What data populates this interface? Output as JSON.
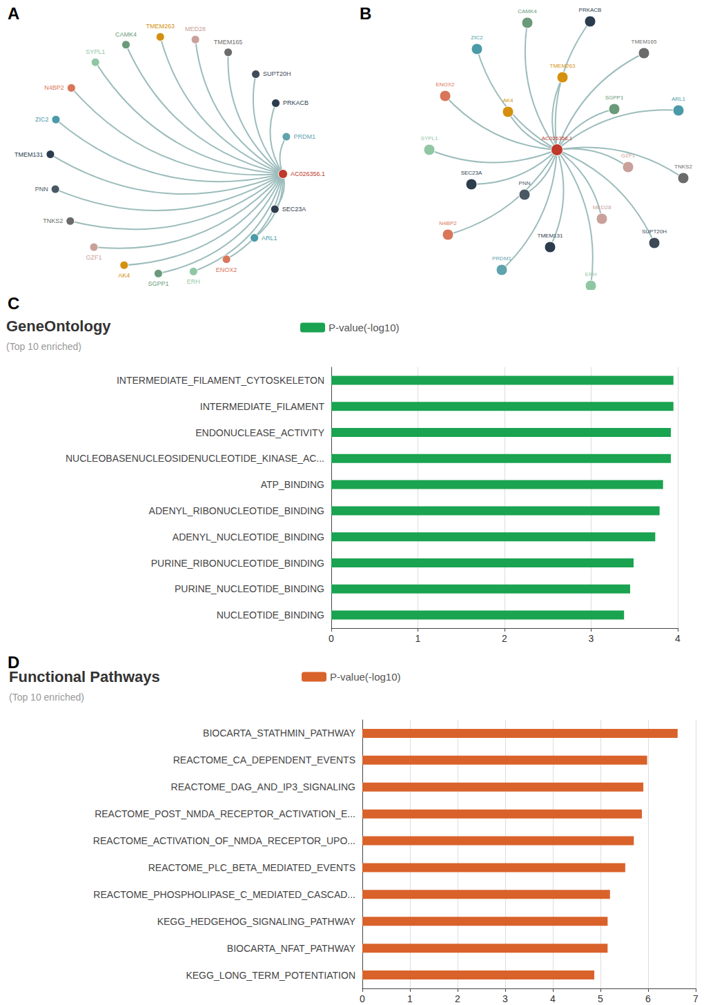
{
  "chart_data": [
    {
      "panel": "A",
      "type": "graph",
      "nodes": [
        {
          "name": "AC026356.1",
          "color": "#c0392b"
        },
        {
          "name": "SEC23A",
          "color": "#2e3d4d"
        },
        {
          "name": "ARL1",
          "color": "#4b9aa8"
        },
        {
          "name": "ENOX2",
          "color": "#d9765a"
        },
        {
          "name": "ERH",
          "color": "#8fc7a3"
        },
        {
          "name": "SGPP1",
          "color": "#6a9a7a"
        },
        {
          "name": "AK4",
          "color": "#d4900e"
        },
        {
          "name": "GZF1",
          "color": "#c9a09a"
        },
        {
          "name": "TNKS2",
          "color": "#6b6b6b"
        },
        {
          "name": "PNN",
          "color": "#4a5864"
        },
        {
          "name": "TMEM131",
          "color": "#2b3c4d"
        },
        {
          "name": "ZIC2",
          "color": "#4b9aa8"
        },
        {
          "name": "N4BP2",
          "color": "#d9765a"
        },
        {
          "name": "SYPL1",
          "color": "#8fc7a3"
        },
        {
          "name": "CAMK4",
          "color": "#6a9a7a"
        },
        {
          "name": "TMEM263",
          "color": "#d4900e"
        },
        {
          "name": "MED28",
          "color": "#c9a09a"
        },
        {
          "name": "TMEM165",
          "color": "#6b6b6b"
        },
        {
          "name": "SUPT20H",
          "color": "#3e4a57"
        },
        {
          "name": "PRKACB",
          "color": "#2b3c4d"
        },
        {
          "name": "PRDM1",
          "color": "#5fa3ad"
        }
      ],
      "links": [
        {
          "source": "AC026356.1",
          "target": "SEC23A"
        },
        {
          "source": "AC026356.1",
          "target": "ARL1"
        },
        {
          "source": "AC026356.1",
          "target": "ENOX2"
        },
        {
          "source": "AC026356.1",
          "target": "ERH"
        },
        {
          "source": "AC026356.1",
          "target": "SGPP1"
        },
        {
          "source": "AC026356.1",
          "target": "AK4"
        },
        {
          "source": "AC026356.1",
          "target": "GZF1"
        },
        {
          "source": "AC026356.1",
          "target": "TNKS2"
        },
        {
          "source": "AC026356.1",
          "target": "PNN"
        },
        {
          "source": "AC026356.1",
          "target": "TMEM131"
        },
        {
          "source": "AC026356.1",
          "target": "ZIC2"
        },
        {
          "source": "AC026356.1",
          "target": "N4BP2"
        },
        {
          "source": "AC026356.1",
          "target": "SYPL1"
        },
        {
          "source": "AC026356.1",
          "target": "CAMK4"
        },
        {
          "source": "AC026356.1",
          "target": "TMEM263"
        },
        {
          "source": "AC026356.1",
          "target": "MED28"
        },
        {
          "source": "AC026356.1",
          "target": "TMEM165"
        },
        {
          "source": "AC026356.1",
          "target": "SUPT20H"
        },
        {
          "source": "AC026356.1",
          "target": "PRKACB"
        },
        {
          "source": "AC026356.1",
          "target": "PRDM1"
        }
      ]
    },
    {
      "panel": "B",
      "type": "graph",
      "nodes": [
        {
          "name": "AC026356.1",
          "color": "#c0392b"
        },
        {
          "name": "SEC23A",
          "color": "#2e3d4d"
        },
        {
          "name": "ARL1",
          "color": "#4b9aa8"
        },
        {
          "name": "ENOX2",
          "color": "#d9765a"
        },
        {
          "name": "ERH",
          "color": "#8fc7a3"
        },
        {
          "name": "SGPP1",
          "color": "#6a9a7a"
        },
        {
          "name": "AK4",
          "color": "#d4900e"
        },
        {
          "name": "GZF1",
          "color": "#c9a09a"
        },
        {
          "name": "TNKS2",
          "color": "#6b6b6b"
        },
        {
          "name": "PNN",
          "color": "#4a5864"
        },
        {
          "name": "TMEM131",
          "color": "#2b3c4d"
        },
        {
          "name": "ZIC2",
          "color": "#4b9aa8"
        },
        {
          "name": "N4BP2",
          "color": "#d9765a"
        },
        {
          "name": "SYPL1",
          "color": "#8fc7a3"
        },
        {
          "name": "CAMK4",
          "color": "#6a9a7a"
        },
        {
          "name": "TMEM263",
          "color": "#d4900e"
        },
        {
          "name": "MED28",
          "color": "#c9a09a"
        },
        {
          "name": "TMEM165",
          "color": "#6b6b6b"
        },
        {
          "name": "SUPT20H",
          "color": "#3e4a57"
        },
        {
          "name": "PRKACB",
          "color": "#2b3c4d"
        },
        {
          "name": "PRDM1",
          "color": "#5fa3ad"
        }
      ],
      "links": [
        {
          "source": "AC026356.1",
          "target": "SEC23A"
        },
        {
          "source": "AC026356.1",
          "target": "ARL1"
        },
        {
          "source": "AC026356.1",
          "target": "ENOX2"
        },
        {
          "source": "AC026356.1",
          "target": "ERH"
        },
        {
          "source": "AC026356.1",
          "target": "SGPP1"
        },
        {
          "source": "AC026356.1",
          "target": "AK4"
        },
        {
          "source": "AC026356.1",
          "target": "GZF1"
        },
        {
          "source": "AC026356.1",
          "target": "TNKS2"
        },
        {
          "source": "AC026356.1",
          "target": "PNN"
        },
        {
          "source": "AC026356.1",
          "target": "TMEM131"
        },
        {
          "source": "AC026356.1",
          "target": "ZIC2"
        },
        {
          "source": "AC026356.1",
          "target": "N4BP2"
        },
        {
          "source": "AC026356.1",
          "target": "SYPL1"
        },
        {
          "source": "AC026356.1",
          "target": "CAMK4"
        },
        {
          "source": "AC026356.1",
          "target": "TMEM263"
        },
        {
          "source": "AC026356.1",
          "target": "MED28"
        },
        {
          "source": "AC026356.1",
          "target": "TMEM165"
        },
        {
          "source": "AC026356.1",
          "target": "SUPT20H"
        },
        {
          "source": "AC026356.1",
          "target": "PRKACB"
        },
        {
          "source": "AC026356.1",
          "target": "PRDM1"
        }
      ]
    },
    {
      "panel": "C",
      "type": "bar",
      "orientation": "horizontal",
      "title": "GeneOntology",
      "subtitle": "(Top 10 enriched)",
      "categories": [
        "INTERMEDIATE_FILAMENT_CYTOSKELETON",
        "INTERMEDIATE_FILAMENT",
        "ENDONUCLEASE_ACTIVITY",
        "NUCLEOBASENUCLEOSIDENUCLEOTIDE_KINASE_AC...",
        "ATP_BINDING",
        "ADENYL_RIBONUCLEOTIDE_BINDING",
        "ADENYL_NUCLEOTIDE_BINDING",
        "PURINE_RIBONUCLEOTIDE_BINDING",
        "PURINE_NUCLEOTIDE_BINDING",
        "NUCLEOTIDE_BINDING"
      ],
      "series": [
        {
          "name": "P-value(-log10)",
          "color": "#1aa350",
          "values": [
            3.95,
            3.95,
            3.92,
            3.92,
            3.83,
            3.79,
            3.74,
            3.49,
            3.45,
            3.38
          ]
        }
      ],
      "xlim": [
        0,
        4
      ],
      "xticks": [
        0,
        1,
        2,
        3,
        4
      ],
      "grid": true,
      "legend": "top"
    },
    {
      "panel": "D",
      "type": "bar",
      "orientation": "horizontal",
      "title": "Functional Pathways",
      "subtitle": "(Top 10 enriched)",
      "categories": [
        "BIOCARTA_STATHMIN_PATHWAY",
        "REACTOME_CA_DEPENDENT_EVENTS",
        "REACTOME_DAG_AND_IP3_SIGNALING",
        "REACTOME_POST_NMDA_RECEPTOR_ACTIVATION_E...",
        "REACTOME_ACTIVATION_OF_NMDA_RECEPTOR_UPO...",
        "REACTOME_PLC_BETA_MEDIATED_EVENTS",
        "REACTOME_PHOSPHOLIPASE_C_MEDIATED_CASCAD...",
        "KEGG_HEDGEHOG_SIGNALING_PATHWAY",
        "BIOCARTA_NFAT_PATHWAY",
        "KEGG_LONG_TERM_POTENTIATION"
      ],
      "series": [
        {
          "name": "P-value(-log10)",
          "color": "#d9622b",
          "values": [
            6.62,
            5.98,
            5.9,
            5.87,
            5.7,
            5.52,
            5.2,
            5.15,
            5.15,
            4.87
          ]
        }
      ],
      "xlim": [
        0,
        7
      ],
      "xticks": [
        0,
        1,
        2,
        3,
        4,
        5,
        6,
        7
      ],
      "grid": true,
      "legend": "top"
    }
  ]
}
